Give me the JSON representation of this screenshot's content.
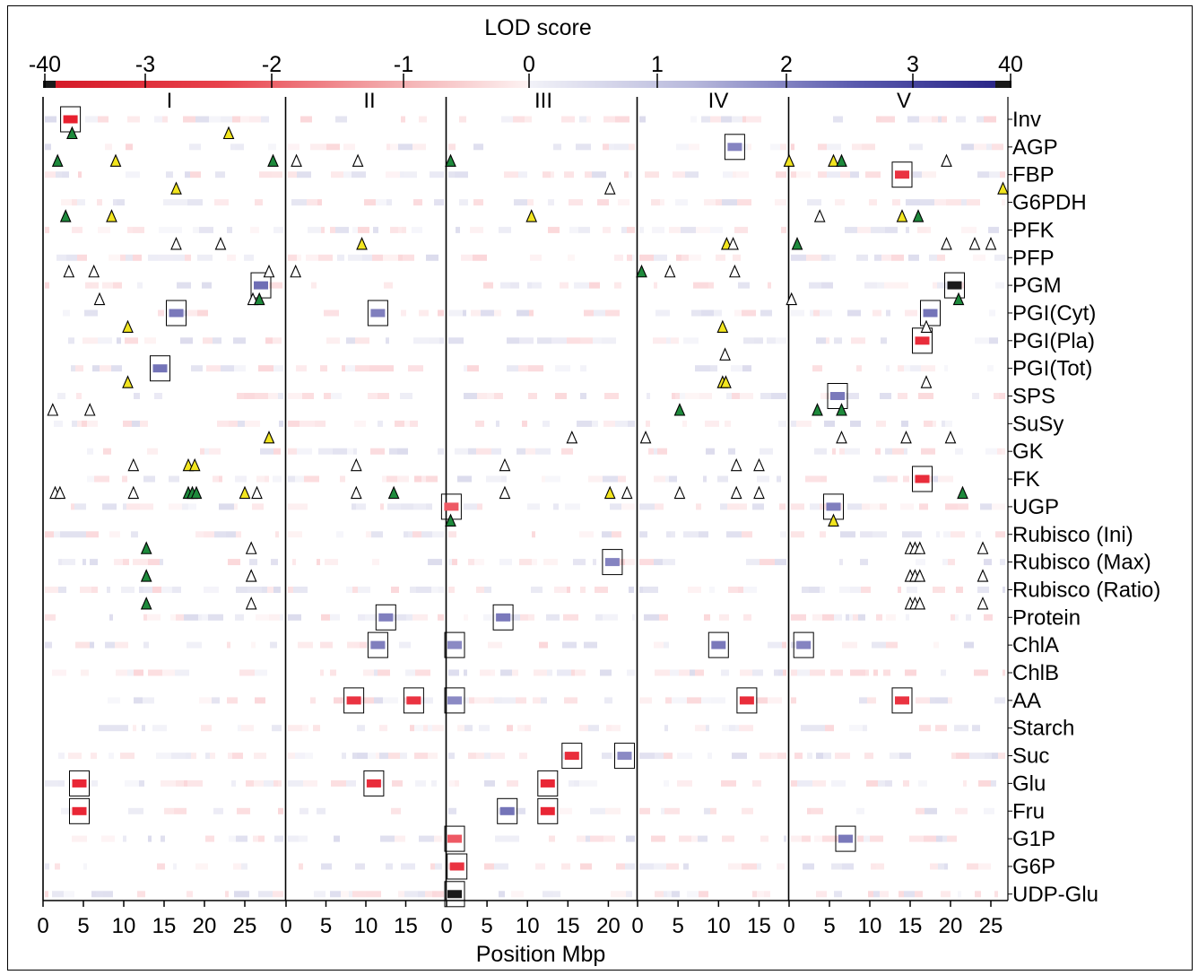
{
  "chart_data": {
    "type": "heatmap",
    "title": "LOD score",
    "xlabel": "Position Mbp",
    "colorbar": {
      "tick_labels": [
        "-40",
        "-3",
        "-2",
        "-1",
        "0",
        "1",
        "2",
        "3",
        "40"
      ],
      "low_color": "#e8202f",
      "high_color": "#3d3c9c",
      "extreme_low_color": "#1a1a1a",
      "extreme_high_color": "#1a1a1a"
    },
    "chromosomes": [
      {
        "name": "I",
        "length_mbp": 30,
        "ticks": [
          0,
          5,
          10,
          15,
          20,
          25
        ]
      },
      {
        "name": "II",
        "length_mbp": 20,
        "ticks": [
          0,
          5,
          10,
          15
        ]
      },
      {
        "name": "III",
        "length_mbp": 23.5,
        "ticks": [
          0,
          5,
          10,
          15,
          20
        ]
      },
      {
        "name": "IV",
        "length_mbp": 18.6,
        "ticks": [
          0,
          5,
          10,
          15
        ]
      },
      {
        "name": "V",
        "length_mbp": 27,
        "ticks": [
          0,
          5,
          10,
          15,
          20,
          25
        ]
      }
    ],
    "traits": [
      "Inv",
      "AGP",
      "FBP",
      "G6PDH",
      "PFK",
      "PFP",
      "PGM",
      "PGI(Cyt)",
      "PGI(Pla)",
      "PGI(Tot)",
      "SPS",
      "SuSy",
      "GK",
      "FK",
      "UGP",
      "Rubisco (Ini)",
      "Rubisco (Max)",
      "Rubisco (Ratio)",
      "Protein",
      "ChlA",
      "ChlB",
      "AA",
      "Starch",
      "Suc",
      "Glu",
      "Fru",
      "G1P",
      "G6P",
      "UDP-Glu"
    ],
    "significant_qtl": [
      {
        "trait": "Inv",
        "chromosome": "I",
        "position": 3.4,
        "lod": -3.5
      },
      {
        "trait": "AGP",
        "chromosome": "IV",
        "position": 12,
        "lod": 2.2
      },
      {
        "trait": "FBP",
        "chromosome": "V",
        "position": 14,
        "lod": -3.2
      },
      {
        "trait": "PGM",
        "chromosome": "I",
        "position": 27,
        "lod": 2.6
      },
      {
        "trait": "PGM",
        "chromosome": "V",
        "position": 20.5,
        "lod": 40
      },
      {
        "trait": "PGI(Cyt)",
        "chromosome": "I",
        "position": 16.5,
        "lod": 2.4
      },
      {
        "trait": "PGI(Cyt)",
        "chromosome": "II",
        "position": 11.5,
        "lod": 2.3
      },
      {
        "trait": "PGI(Cyt)",
        "chromosome": "V",
        "position": 17.5,
        "lod": 2.5
      },
      {
        "trait": "PGI(Pla)",
        "chromosome": "V",
        "position": 16.5,
        "lod": -3.3
      },
      {
        "trait": "PGI(Tot)",
        "chromosome": "I",
        "position": 14.5,
        "lod": 2.5
      },
      {
        "trait": "SPS",
        "chromosome": "V",
        "position": 6,
        "lod": 2.4
      },
      {
        "trait": "FK",
        "chromosome": "V",
        "position": 16.5,
        "lod": -3.3
      },
      {
        "trait": "UGP",
        "chromosome": "III",
        "position": 0.6,
        "lod": -2.6
      },
      {
        "trait": "UGP",
        "chromosome": "V",
        "position": 5.5,
        "lod": 2.3
      },
      {
        "trait": "Rubisco (Max)",
        "chromosome": "III",
        "position": 20.5,
        "lod": 2.2
      },
      {
        "trait": "Protein",
        "chromosome": "II",
        "position": 12.5,
        "lod": 2.3
      },
      {
        "trait": "Protein",
        "chromosome": "III",
        "position": 7,
        "lod": 2.4
      },
      {
        "trait": "ChlA",
        "chromosome": "II",
        "position": 11.5,
        "lod": 2.3
      },
      {
        "trait": "ChlA",
        "chromosome": "III",
        "position": 1,
        "lod": 2.1
      },
      {
        "trait": "ChlA",
        "chromosome": "IV",
        "position": 10,
        "lod": 2.4
      },
      {
        "trait": "ChlA",
        "chromosome": "V",
        "position": 1.8,
        "lod": 2.2
      },
      {
        "trait": "AA",
        "chromosome": "II",
        "position": 8.5,
        "lod": -3.2
      },
      {
        "trait": "AA",
        "chromosome": "II",
        "position": 16,
        "lod": -3.2
      },
      {
        "trait": "AA",
        "chromosome": "III",
        "position": 1,
        "lod": 2.1
      },
      {
        "trait": "AA",
        "chromosome": "IV",
        "position": 13.5,
        "lod": -3.3
      },
      {
        "trait": "AA",
        "chromosome": "V",
        "position": 14,
        "lod": -3.2
      },
      {
        "trait": "Suc",
        "chromosome": "III",
        "position": 15.5,
        "lod": -3.3
      },
      {
        "trait": "Suc",
        "chromosome": "III",
        "position": 22,
        "lod": 2.1
      },
      {
        "trait": "Glu",
        "chromosome": "I",
        "position": 4.5,
        "lod": -3.4
      },
      {
        "trait": "Glu",
        "chromosome": "II",
        "position": 11,
        "lod": -3.3
      },
      {
        "trait": "Glu",
        "chromosome": "III",
        "position": 12.5,
        "lod": -3.4
      },
      {
        "trait": "Fru",
        "chromosome": "I",
        "position": 4.5,
        "lod": -3.4
      },
      {
        "trait": "Fru",
        "chromosome": "III",
        "position": 7.5,
        "lod": 2.5
      },
      {
        "trait": "Fru",
        "chromosome": "III",
        "position": 12.5,
        "lod": -3.4
      },
      {
        "trait": "G1P",
        "chromosome": "III",
        "position": 1,
        "lod": -2.6
      },
      {
        "trait": "G1P",
        "chromosome": "V",
        "position": 7,
        "lod": 2.4
      },
      {
        "trait": "G6P",
        "chromosome": "III",
        "position": 1.3,
        "lod": -3.2
      },
      {
        "trait": "UDP-Glu",
        "chromosome": "III",
        "position": 1,
        "lod": 40
      }
    ],
    "triangles": [
      {
        "trait": "Inv",
        "chromosome": "I",
        "position": 3.6,
        "type": "green"
      },
      {
        "trait": "Inv",
        "chromosome": "I",
        "position": 23,
        "type": "yellow"
      },
      {
        "trait": "AGP",
        "chromosome": "I",
        "position": 1.8,
        "type": "green"
      },
      {
        "trait": "AGP",
        "chromosome": "I",
        "position": 9,
        "type": "yellow"
      },
      {
        "trait": "AGP",
        "chromosome": "I",
        "position": 28.5,
        "type": "green"
      },
      {
        "trait": "AGP",
        "chromosome": "II",
        "position": 1.3,
        "type": "open"
      },
      {
        "trait": "AGP",
        "chromosome": "II",
        "position": 9,
        "type": "open"
      },
      {
        "trait": "AGP",
        "chromosome": "III",
        "position": 0.5,
        "type": "green"
      },
      {
        "trait": "AGP",
        "chromosome": "V",
        "position": 0,
        "type": "yellow"
      },
      {
        "trait": "AGP",
        "chromosome": "V",
        "position": 5.5,
        "type": "yellow"
      },
      {
        "trait": "AGP",
        "chromosome": "V",
        "position": 6.5,
        "type": "green"
      },
      {
        "trait": "AGP",
        "chromosome": "V",
        "position": 19.5,
        "type": "open"
      },
      {
        "trait": "FBP",
        "chromosome": "I",
        "position": 16.5,
        "type": "yellow"
      },
      {
        "trait": "FBP",
        "chromosome": "III",
        "position": 20.2,
        "type": "open"
      },
      {
        "trait": "FBP",
        "chromosome": "V",
        "position": 26.5,
        "type": "yellow"
      },
      {
        "trait": "G6PDH",
        "chromosome": "I",
        "position": 2.8,
        "type": "green"
      },
      {
        "trait": "G6PDH",
        "chromosome": "I",
        "position": 8.5,
        "type": "yellow"
      },
      {
        "trait": "G6PDH",
        "chromosome": "III",
        "position": 10.5,
        "type": "yellow"
      },
      {
        "trait": "G6PDH",
        "chromosome": "V",
        "position": 3.8,
        "type": "open"
      },
      {
        "trait": "G6PDH",
        "chromosome": "V",
        "position": 14,
        "type": "yellow"
      },
      {
        "trait": "G6PDH",
        "chromosome": "V",
        "position": 16,
        "type": "green"
      },
      {
        "trait": "PFK",
        "chromosome": "I",
        "position": 16.5,
        "type": "open"
      },
      {
        "trait": "PFK",
        "chromosome": "I",
        "position": 22,
        "type": "open"
      },
      {
        "trait": "PFK",
        "chromosome": "II",
        "position": 9.5,
        "type": "yellow"
      },
      {
        "trait": "PFK",
        "chromosome": "IV",
        "position": 11,
        "type": "yellow"
      },
      {
        "trait": "PFK",
        "chromosome": "IV",
        "position": 11.8,
        "type": "open"
      },
      {
        "trait": "PFK",
        "chromosome": "V",
        "position": 1,
        "type": "green"
      },
      {
        "trait": "PFK",
        "chromosome": "V",
        "position": 19.5,
        "type": "open"
      },
      {
        "trait": "PFK",
        "chromosome": "V",
        "position": 23,
        "type": "open"
      },
      {
        "trait": "PFK",
        "chromosome": "V",
        "position": 25,
        "type": "open"
      },
      {
        "trait": "PFP",
        "chromosome": "I",
        "position": 3.2,
        "type": "open"
      },
      {
        "trait": "PFP",
        "chromosome": "I",
        "position": 6.3,
        "type": "open"
      },
      {
        "trait": "PFP",
        "chromosome": "I",
        "position": 28,
        "type": "open"
      },
      {
        "trait": "PFP",
        "chromosome": "II",
        "position": 1.2,
        "type": "open"
      },
      {
        "trait": "PFP",
        "chromosome": "IV",
        "position": 0.5,
        "type": "green"
      },
      {
        "trait": "PFP",
        "chromosome": "IV",
        "position": 4,
        "type": "open"
      },
      {
        "trait": "PFP",
        "chromosome": "IV",
        "position": 12,
        "type": "open"
      },
      {
        "trait": "PGM",
        "chromosome": "I",
        "position": 7,
        "type": "open"
      },
      {
        "trait": "PGM",
        "chromosome": "I",
        "position": 26,
        "type": "open"
      },
      {
        "trait": "PGM",
        "chromosome": "I",
        "position": 26.8,
        "type": "green"
      },
      {
        "trait": "PGM",
        "chromosome": "V",
        "position": 0.3,
        "type": "open"
      },
      {
        "trait": "PGM",
        "chromosome": "V",
        "position": 21,
        "type": "green"
      },
      {
        "trait": "PGI(Cyt)",
        "chromosome": "I",
        "position": 10.5,
        "type": "yellow"
      },
      {
        "trait": "PGI(Cyt)",
        "chromosome": "IV",
        "position": 10.5,
        "type": "yellow"
      },
      {
        "trait": "PGI(Cyt)",
        "chromosome": "V",
        "position": 17,
        "type": "open"
      },
      {
        "trait": "PGI(Pla)",
        "chromosome": "IV",
        "position": 10.8,
        "type": "open"
      },
      {
        "trait": "PGI(Tot)",
        "chromosome": "I",
        "position": 10.5,
        "type": "yellow"
      },
      {
        "trait": "PGI(Tot)",
        "chromosome": "IV",
        "position": 10.5,
        "type": "yellow"
      },
      {
        "trait": "PGI(Tot)",
        "chromosome": "IV",
        "position": 10.9,
        "type": "yellow"
      },
      {
        "trait": "PGI(Tot)",
        "chromosome": "V",
        "position": 17,
        "type": "open"
      },
      {
        "trait": "SPS",
        "chromosome": "I",
        "position": 1.2,
        "type": "open"
      },
      {
        "trait": "SPS",
        "chromosome": "I",
        "position": 5.8,
        "type": "open"
      },
      {
        "trait": "SPS",
        "chromosome": "IV",
        "position": 5.2,
        "type": "green"
      },
      {
        "trait": "SPS",
        "chromosome": "V",
        "position": 3.5,
        "type": "green"
      },
      {
        "trait": "SPS",
        "chromosome": "V",
        "position": 6.5,
        "type": "green"
      },
      {
        "trait": "SuSy",
        "chromosome": "I",
        "position": 28,
        "type": "yellow"
      },
      {
        "trait": "SuSy",
        "chromosome": "III",
        "position": 15.5,
        "type": "open"
      },
      {
        "trait": "SuSy",
        "chromosome": "IV",
        "position": 1,
        "type": "open"
      },
      {
        "trait": "SuSy",
        "chromosome": "V",
        "position": 6.5,
        "type": "open"
      },
      {
        "trait": "SuSy",
        "chromosome": "V",
        "position": 14.5,
        "type": "open"
      },
      {
        "trait": "SuSy",
        "chromosome": "V",
        "position": 20,
        "type": "open"
      },
      {
        "trait": "GK",
        "chromosome": "I",
        "position": 11.2,
        "type": "open"
      },
      {
        "trait": "GK",
        "chromosome": "I",
        "position": 18,
        "type": "yellow"
      },
      {
        "trait": "GK",
        "chromosome": "I",
        "position": 18.8,
        "type": "yellow"
      },
      {
        "trait": "GK",
        "chromosome": "II",
        "position": 8.8,
        "type": "open"
      },
      {
        "trait": "GK",
        "chromosome": "III",
        "position": 7.2,
        "type": "open"
      },
      {
        "trait": "GK",
        "chromosome": "IV",
        "position": 12.2,
        "type": "open"
      },
      {
        "trait": "GK",
        "chromosome": "IV",
        "position": 15,
        "type": "open"
      },
      {
        "trait": "FK",
        "chromosome": "I",
        "position": 1.5,
        "type": "open"
      },
      {
        "trait": "FK",
        "chromosome": "I",
        "position": 2.1,
        "type": "open"
      },
      {
        "trait": "FK",
        "chromosome": "I",
        "position": 11.2,
        "type": "open"
      },
      {
        "trait": "FK",
        "chromosome": "I",
        "position": 18,
        "type": "green"
      },
      {
        "trait": "FK",
        "chromosome": "I",
        "position": 18.5,
        "type": "green"
      },
      {
        "trait": "FK",
        "chromosome": "I",
        "position": 19,
        "type": "green"
      },
      {
        "trait": "FK",
        "chromosome": "I",
        "position": 25,
        "type": "yellow"
      },
      {
        "trait": "FK",
        "chromosome": "I",
        "position": 26.5,
        "type": "open"
      },
      {
        "trait": "FK",
        "chromosome": "II",
        "position": 8.8,
        "type": "open"
      },
      {
        "trait": "FK",
        "chromosome": "II",
        "position": 13.5,
        "type": "green"
      },
      {
        "trait": "FK",
        "chromosome": "III",
        "position": 7.2,
        "type": "open"
      },
      {
        "trait": "FK",
        "chromosome": "III",
        "position": 20.2,
        "type": "yellow"
      },
      {
        "trait": "FK",
        "chromosome": "III",
        "position": 22.3,
        "type": "open"
      },
      {
        "trait": "FK",
        "chromosome": "IV",
        "position": 5.2,
        "type": "open"
      },
      {
        "trait": "FK",
        "chromosome": "IV",
        "position": 12.2,
        "type": "open"
      },
      {
        "trait": "FK",
        "chromosome": "IV",
        "position": 15,
        "type": "open"
      },
      {
        "trait": "FK",
        "chromosome": "V",
        "position": 21.5,
        "type": "green"
      },
      {
        "trait": "UGP",
        "chromosome": "III",
        "position": 0.5,
        "type": "green"
      },
      {
        "trait": "UGP",
        "chromosome": "V",
        "position": 5.5,
        "type": "yellow"
      },
      {
        "trait": "Rubisco (Ini)",
        "chromosome": "I",
        "position": 12.8,
        "type": "green"
      },
      {
        "trait": "Rubisco (Ini)",
        "chromosome": "I",
        "position": 25.8,
        "type": "open"
      },
      {
        "trait": "Rubisco (Ini)",
        "chromosome": "V",
        "position": 15,
        "type": "open"
      },
      {
        "trait": "Rubisco (Ini)",
        "chromosome": "V",
        "position": 15.6,
        "type": "open"
      },
      {
        "trait": "Rubisco (Ini)",
        "chromosome": "V",
        "position": 16.2,
        "type": "open"
      },
      {
        "trait": "Rubisco (Ini)",
        "chromosome": "V",
        "position": 24,
        "type": "open"
      },
      {
        "trait": "Rubisco (Max)",
        "chromosome": "I",
        "position": 12.8,
        "type": "green"
      },
      {
        "trait": "Rubisco (Max)",
        "chromosome": "I",
        "position": 25.8,
        "type": "open"
      },
      {
        "trait": "Rubisco (Max)",
        "chromosome": "V",
        "position": 15,
        "type": "open"
      },
      {
        "trait": "Rubisco (Max)",
        "chromosome": "V",
        "position": 15.6,
        "type": "open"
      },
      {
        "trait": "Rubisco (Max)",
        "chromosome": "V",
        "position": 16.2,
        "type": "open"
      },
      {
        "trait": "Rubisco (Max)",
        "chromosome": "V",
        "position": 24,
        "type": "open"
      },
      {
        "trait": "Rubisco (Ratio)",
        "chromosome": "I",
        "position": 12.8,
        "type": "green"
      },
      {
        "trait": "Rubisco (Ratio)",
        "chromosome": "I",
        "position": 25.8,
        "type": "open"
      },
      {
        "trait": "Rubisco (Ratio)",
        "chromosome": "V",
        "position": 15,
        "type": "open"
      },
      {
        "trait": "Rubisco (Ratio)",
        "chromosome": "V",
        "position": 15.6,
        "type": "open"
      },
      {
        "trait": "Rubisco (Ratio)",
        "chromosome": "V",
        "position": 16.2,
        "type": "open"
      },
      {
        "trait": "Rubisco (Ratio)",
        "chromosome": "V",
        "position": 24,
        "type": "open"
      }
    ],
    "legend": "none"
  }
}
